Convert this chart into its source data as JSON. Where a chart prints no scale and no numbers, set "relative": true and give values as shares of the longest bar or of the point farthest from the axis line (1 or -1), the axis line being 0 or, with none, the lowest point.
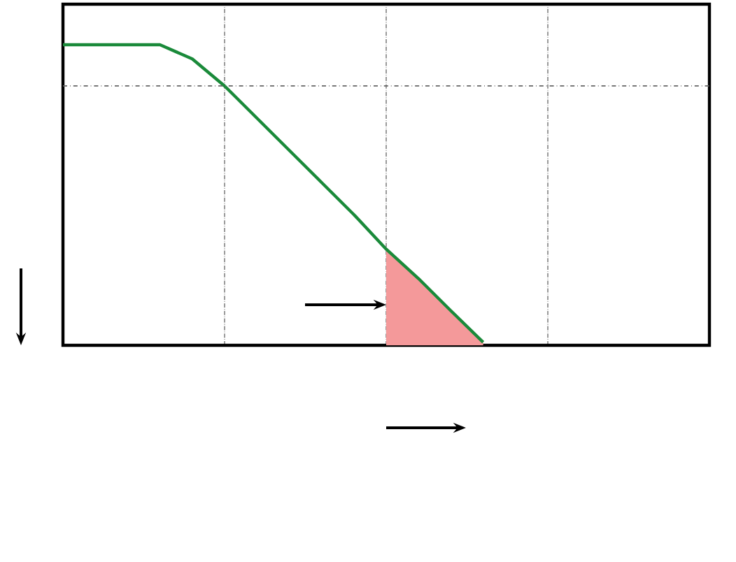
{
  "chart_data": {
    "type": "line",
    "relative": true,
    "grid": "x",
    "marker": "none",
    "line_style": "solid",
    "categories": [
      null,
      null,
      null,
      null,
      null,
      null,
      null,
      null,
      null,
      null,
      null,
      null,
      null,
      null,
      null,
      null,
      null,
      null,
      null,
      null,
      null
    ],
    "series": [
      {
        "type": "area",
        "color": "#f4999a",
        "values": [
          null,
          null,
          null,
          null,
          null,
          null,
          null,
          null,
          null,
          null,
          0.32,
          0.222,
          0.115,
          0.01,
          null,
          null,
          null,
          null,
          null,
          null,
          null
        ]
      },
      {
        "color": "#1a8a3a",
        "values": [
          1,
          1,
          1,
          1,
          0.953,
          0.863,
          0.756,
          0.649,
          0.542,
          0.435,
          0.32,
          0.222,
          0.115,
          0.01,
          null,
          null,
          null,
          null,
          null,
          null,
          null
        ]
      }
    ],
    "ref_lines": [
      {
        "axis": "y",
        "value": 0.863,
        "color": "#666666",
        "line_style": "dashdot"
      }
    ]
  }
}
